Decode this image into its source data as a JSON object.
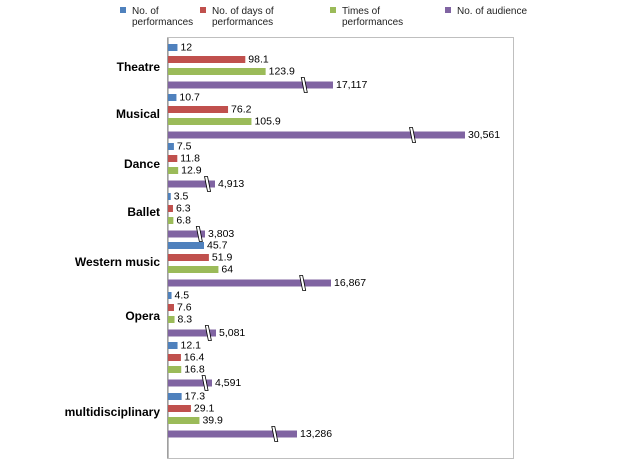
{
  "chart_data": {
    "type": "bar",
    "orientation": "horizontal",
    "broken_axis": true,
    "categories": [
      "Theatre",
      "Musical",
      "Dance",
      "Ballet",
      "Western music",
      "Opera",
      "",
      "multidisciplinary"
    ],
    "series": [
      {
        "name": "No. of performances",
        "color": "#4f81bd",
        "values": [
          12,
          10.7,
          7.5,
          3.5,
          45.7,
          4.5,
          12.1,
          17.3
        ],
        "labels": [
          "12",
          "10.7",
          "7.5",
          "3.5",
          "45.7",
          "4.5",
          "12.1",
          "17.3"
        ]
      },
      {
        "name": "No. of days of performances",
        "color": "#c0504d",
        "values": [
          98.1,
          76.2,
          11.8,
          6.3,
          51.9,
          7.6,
          16.4,
          29.1
        ],
        "labels": [
          "98.1",
          "76.2",
          "11.8",
          "6.3",
          "51.9",
          "7.6",
          "16.4",
          "29.1"
        ]
      },
      {
        "name": "Times of performances",
        "color": "#9bbb59",
        "values": [
          123.9,
          105.9,
          12.9,
          6.8,
          64,
          8.3,
          16.8,
          39.9
        ],
        "labels": [
          "123.9",
          "105.9",
          "12.9",
          "6.8",
          "64",
          "8.3",
          "16.8",
          "39.9"
        ]
      },
      {
        "name": "No. of audience",
        "color": "#8064a2",
        "values": [
          17117,
          30561,
          4913,
          3803,
          16867,
          5081,
          4591,
          13286
        ],
        "labels": [
          "17,117",
          "30,561",
          "4,913",
          "3,803",
          "16,867",
          "5,081",
          "4,591",
          "13,286"
        ]
      }
    ],
    "legend": {
      "position": "top",
      "entries": [
        [
          "No. of",
          "performances"
        ],
        [
          "No. of days of",
          "performances"
        ],
        [
          "Times of",
          "performances"
        ],
        [
          "No. of audience"
        ]
      ]
    }
  }
}
